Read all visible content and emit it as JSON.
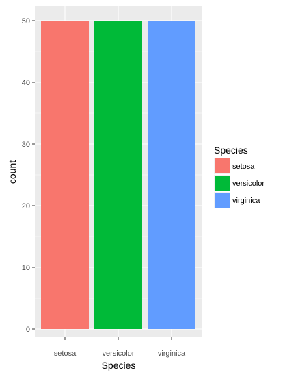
{
  "chart_data": {
    "type": "bar",
    "categories": [
      "setosa",
      "versicolor",
      "virginica"
    ],
    "values": [
      50,
      50,
      50
    ],
    "colors": [
      "#F8766D",
      "#00BA38",
      "#619CFF"
    ],
    "xlabel": "Species",
    "ylabel": "count",
    "ylim": [
      0,
      52.5
    ],
    "yticks": [
      0,
      10,
      20,
      30,
      40,
      50
    ],
    "grid": true,
    "panel_background": "#EBEBEB",
    "legend": {
      "title": "Species",
      "placement": "right",
      "items": [
        {
          "label": "setosa",
          "color": "#F8766D"
        },
        {
          "label": "versicolor",
          "color": "#00BA38"
        },
        {
          "label": "virginica",
          "color": "#619CFF"
        }
      ]
    }
  }
}
